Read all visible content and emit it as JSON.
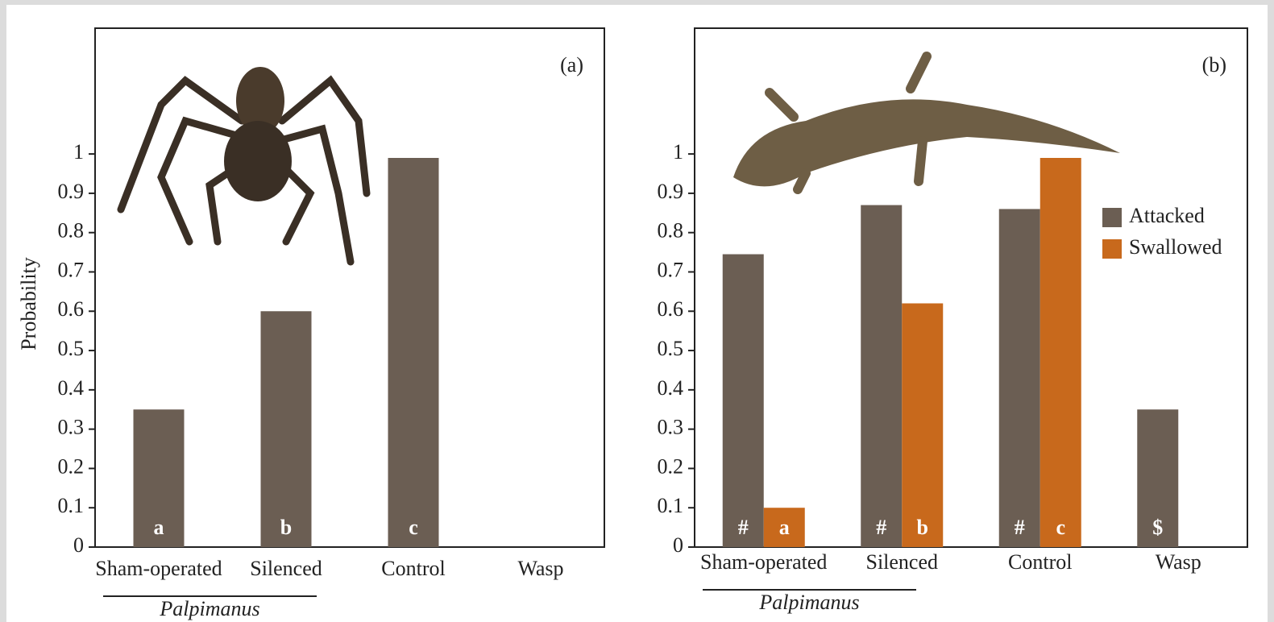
{
  "chart_data": [
    {
      "type": "bar",
      "panel_label": "(a)",
      "ylabel": "Probability",
      "categories": [
        "Sham-operated",
        "Silenced",
        "Control",
        "Wasp"
      ],
      "group_label": "Palpimanus",
      "values": [
        0.35,
        0.6,
        0.99,
        null
      ],
      "color": "#6b5e53",
      "bar_letters": [
        "a",
        "b",
        "c",
        null
      ],
      "ylim": [
        0,
        1.32
      ],
      "yticks": [
        0,
        0.1,
        0.2,
        0.3,
        0.4,
        0.5,
        0.6,
        0.7,
        0.8,
        0.9,
        1
      ]
    },
    {
      "type": "grouped_bar",
      "panel_label": "(b)",
      "categories": [
        "Sham-operated",
        "Silenced",
        "Control",
        "Wasp"
      ],
      "group_label": "Palpimanus",
      "series": [
        {
          "name": "Attacked",
          "color": "#6b5e53",
          "values": [
            0.745,
            0.87,
            0.86,
            0.35
          ],
          "bar_letters": [
            "#",
            "#",
            "#",
            "$"
          ]
        },
        {
          "name": "Swallowed",
          "color": "#c8691c",
          "values": [
            0.1,
            0.62,
            0.99,
            null
          ],
          "bar_letters": [
            "a",
            "b",
            "c",
            null
          ]
        }
      ],
      "legend": "upper right",
      "ylim": [
        0,
        1.32
      ],
      "yticks": [
        0,
        0.1,
        0.2,
        0.3,
        0.4,
        0.5,
        0.6,
        0.7,
        0.8,
        0.9,
        1
      ]
    }
  ]
}
